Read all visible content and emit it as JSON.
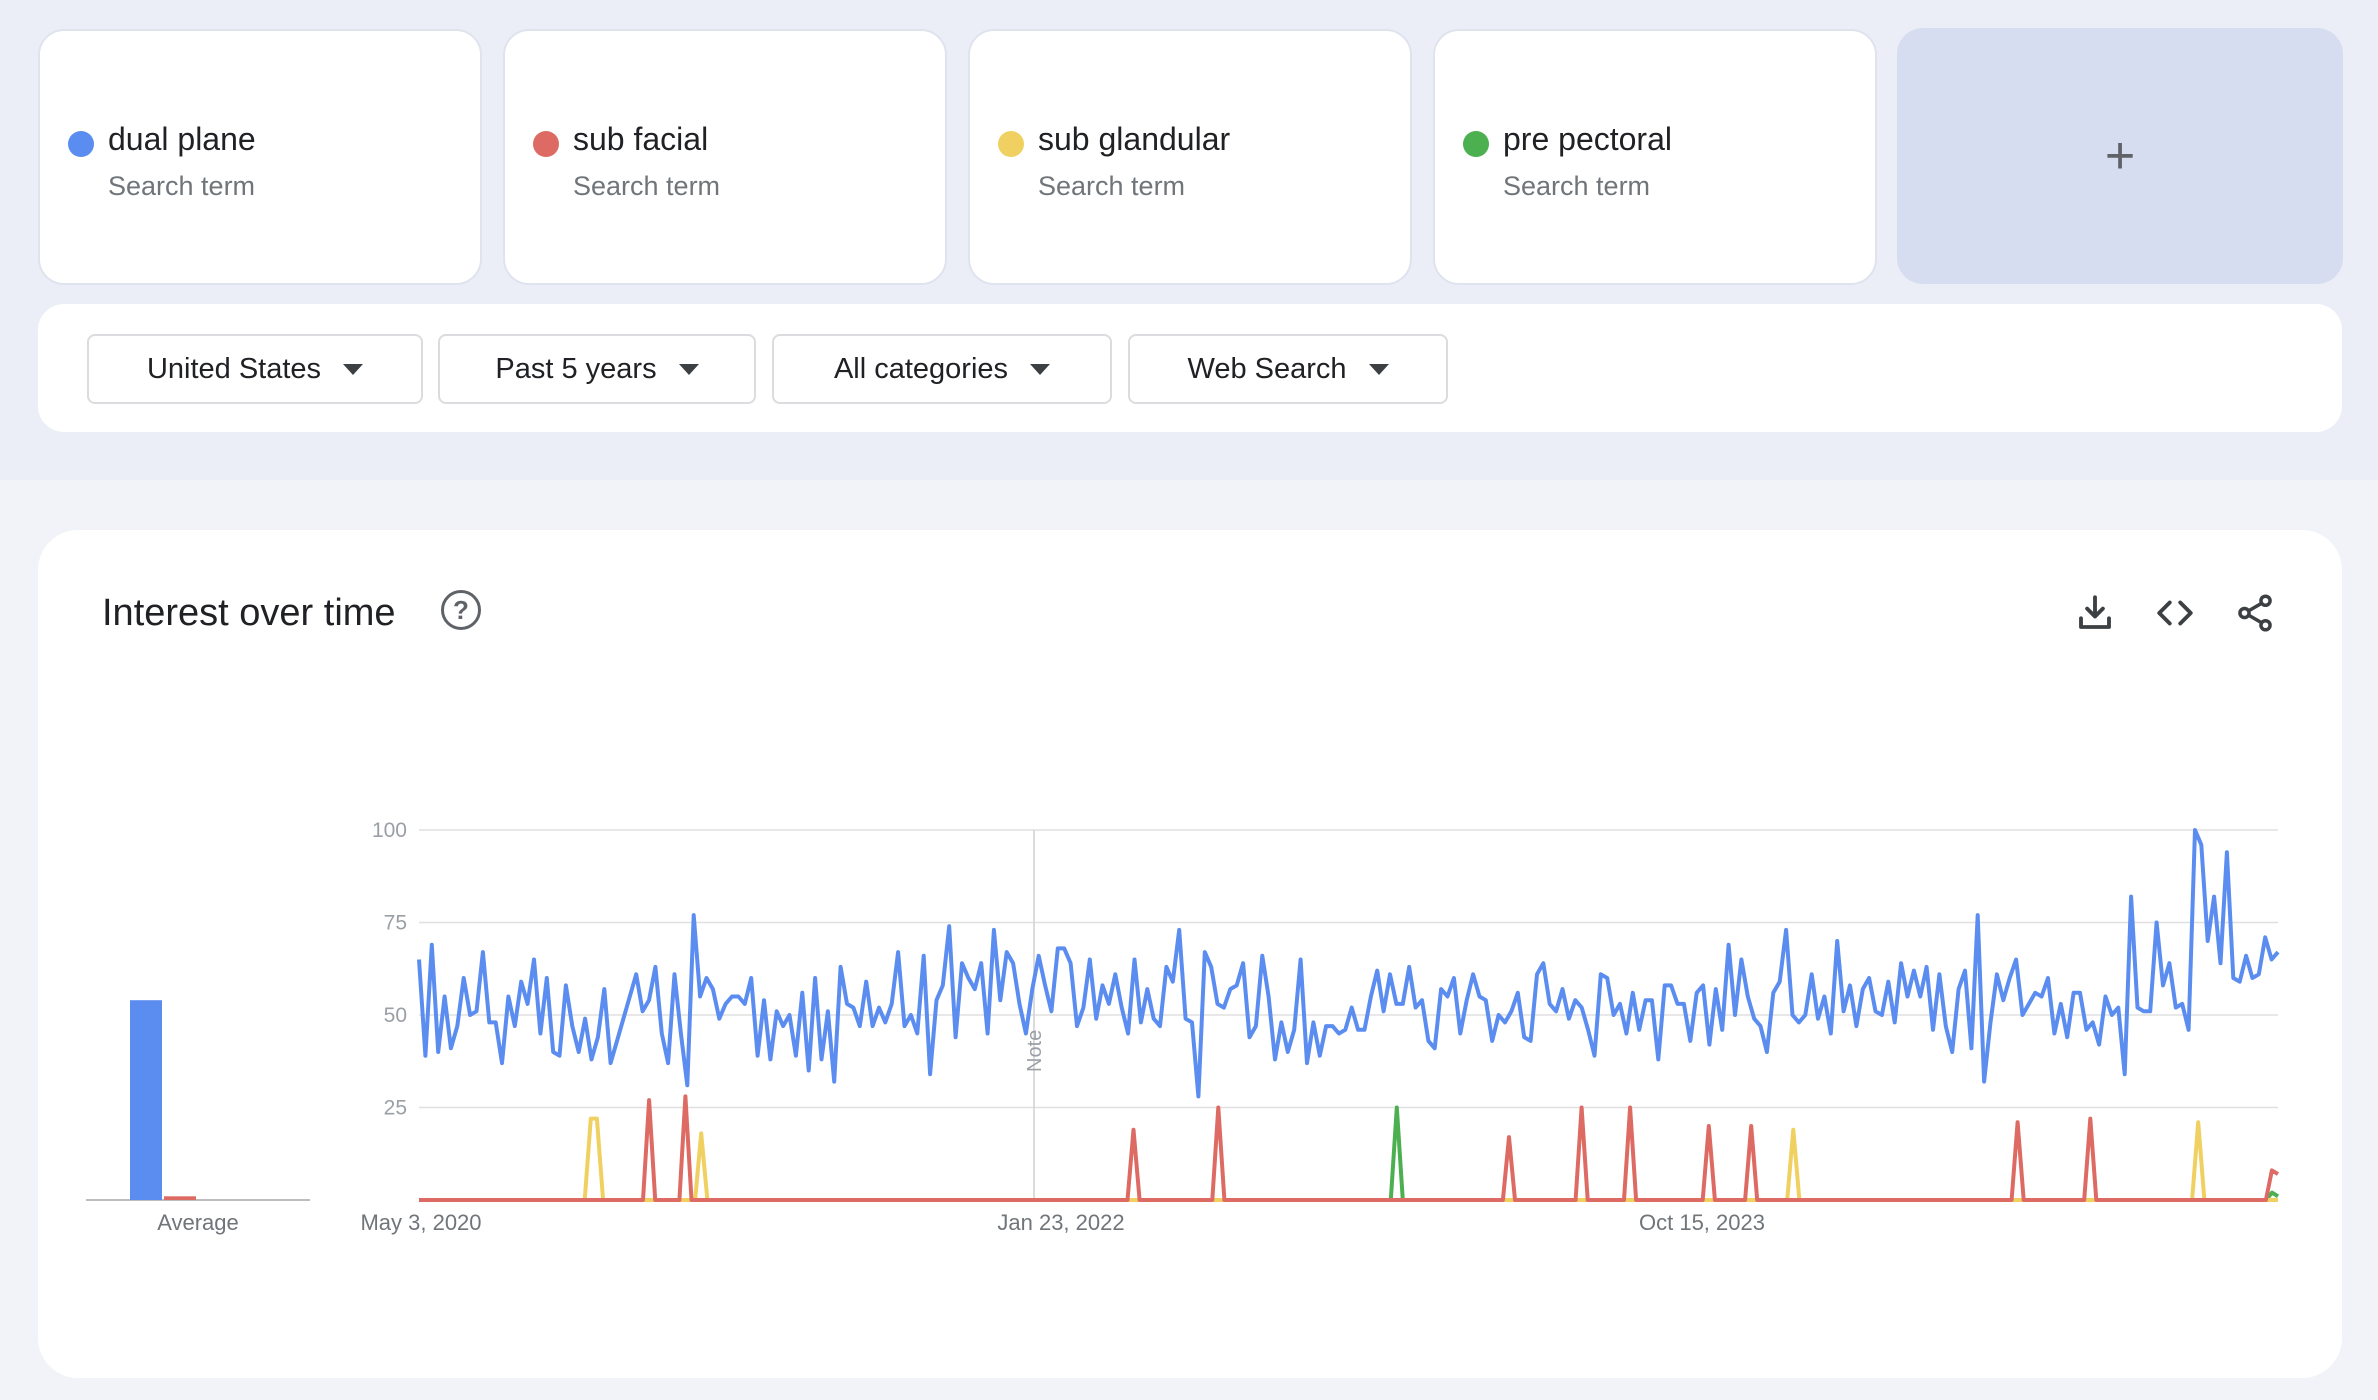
{
  "terms": [
    {
      "name": "dual plane",
      "subtitle": "Search term",
      "color": "#5b8df0"
    },
    {
      "name": "sub facial",
      "subtitle": "Search term",
      "color": "#dd6b63"
    },
    {
      "name": "sub glandular",
      "subtitle": "Search term",
      "color": "#f0d060"
    },
    {
      "name": "pre pectoral",
      "subtitle": "Search term",
      "color": "#4caf50"
    }
  ],
  "add_button": {
    "symbol": "+"
  },
  "filters": {
    "region": "United States",
    "time": "Past 5 years",
    "category": "All categories",
    "search_type": "Web Search"
  },
  "chart_card": {
    "title": "Interest over time",
    "help_symbol": "?",
    "icons": [
      "download-icon",
      "embed-code-icon",
      "share-icon"
    ]
  },
  "chart_data": {
    "type": "line",
    "ylim": [
      0,
      100
    ],
    "y_ticks": [
      "100",
      "75",
      "50",
      "25"
    ],
    "x_ticks": [
      "May 3, 2020",
      "Jan 23, 2022",
      "Oct 15, 2023"
    ],
    "note_label": "Note",
    "average": {
      "label": "Average",
      "values": [
        {
          "name": "dual plane",
          "value": 54
        },
        {
          "name": "sub facial",
          "value": 1
        },
        {
          "name": "sub glandular",
          "value": 0
        },
        {
          "name": "pre pectoral",
          "value": 0
        }
      ]
    },
    "series": [
      {
        "name": "dual plane",
        "color": "#5b8df0",
        "values": [
          65,
          39,
          69,
          40,
          55,
          41,
          47,
          60,
          50,
          51,
          67,
          48,
          48,
          37,
          55,
          47,
          59,
          53,
          65,
          45,
          60,
          40,
          39,
          58,
          47,
          40,
          49,
          38,
          44,
          57,
          37,
          43,
          49,
          55,
          61,
          51,
          54,
          63,
          45,
          37,
          61,
          45,
          31,
          77,
          55,
          60,
          57,
          49,
          53,
          55,
          55,
          53,
          60,
          39,
          54,
          38,
          51,
          47,
          50,
          39,
          56,
          35,
          60,
          38,
          51,
          32,
          63,
          53,
          52,
          47,
          59,
          47,
          52,
          48,
          53,
          67,
          47,
          50,
          45,
          66,
          34,
          54,
          58,
          74,
          44,
          64,
          60,
          57,
          64,
          45,
          73,
          54,
          67,
          64,
          53,
          45,
          57,
          66,
          58,
          51,
          68,
          68,
          64,
          47,
          52,
          65,
          49,
          58,
          53,
          61,
          52,
          45,
          65,
          48,
          57,
          49,
          47,
          63,
          59,
          73,
          49,
          48,
          28,
          67,
          63,
          53,
          52,
          57,
          58,
          64,
          44,
          47,
          66,
          55,
          38,
          48,
          40,
          46,
          65,
          37,
          48,
          39,
          47,
          47,
          45,
          46,
          52,
          46,
          46,
          55,
          62,
          51,
          61,
          53,
          53,
          63,
          52,
          54,
          43,
          41,
          57,
          55,
          60,
          45,
          54,
          61,
          55,
          54,
          43,
          50,
          48,
          51,
          56,
          44,
          43,
          61,
          64,
          53,
          51,
          57,
          49,
          54,
          52,
          46,
          39,
          61,
          60,
          50,
          53,
          45,
          56,
          46,
          54,
          54,
          38,
          58,
          58,
          53,
          53,
          43,
          56,
          58,
          42,
          57,
          46,
          69,
          50,
          65,
          55,
          49,
          47,
          40,
          56,
          59,
          73,
          50,
          48,
          50,
          61,
          49,
          55,
          45,
          70,
          51,
          58,
          47,
          57,
          60,
          51,
          50,
          59,
          48,
          64,
          55,
          62,
          55,
          63,
          46,
          61,
          47,
          40,
          57,
          62,
          41,
          77,
          32,
          48,
          61,
          54,
          60,
          65,
          50,
          53,
          56,
          55,
          60,
          45,
          53,
          44,
          56,
          56,
          46,
          48,
          42,
          55,
          50,
          52,
          34,
          82,
          52,
          51,
          51,
          75,
          58,
          64,
          52,
          53,
          46,
          100,
          96,
          70,
          82,
          64,
          94,
          60,
          59,
          66,
          60,
          61,
          71,
          65,
          67
        ]
      },
      {
        "name": "sub facial",
        "color": "#dd6b63",
        "values": [
          0,
          0,
          0,
          0,
          0,
          0,
          0,
          0,
          0,
          0,
          0,
          0,
          0,
          0,
          0,
          0,
          0,
          0,
          0,
          0,
          0,
          0,
          0,
          0,
          0,
          0,
          0,
          0,
          0,
          0,
          0,
          0,
          0,
          0,
          0,
          0,
          0,
          0,
          27,
          0,
          0,
          0,
          0,
          0,
          0,
          0,
          0,
          0,
          0,
          0,
          0,
          0,
          0,
          0,
          0,
          0,
          0,
          0,
          0,
          0,
          0,
          0,
          0,
          0,
          0,
          0,
          0,
          0,
          0,
          0,
          0,
          0,
          0,
          0,
          0,
          0,
          0,
          0,
          0,
          0,
          0,
          0,
          0,
          0,
          0,
          0,
          0,
          0,
          0,
          0,
          0,
          0,
          0,
          0,
          0,
          0,
          0,
          0,
          0,
          0,
          0,
          0,
          0,
          0,
          0,
          0,
          0,
          0,
          0,
          0,
          0,
          0,
          0,
          0,
          0,
          0,
          0,
          0,
          0,
          0,
          0,
          0,
          0,
          0,
          0,
          0,
          0,
          0,
          0,
          0,
          0,
          0,
          0,
          0,
          0,
          0,
          0,
          0,
          0,
          0,
          0,
          0,
          0,
          0,
          0,
          0,
          0,
          0,
          0,
          0,
          0,
          0,
          0,
          0,
          0,
          0,
          0,
          0,
          0,
          0,
          0,
          0,
          0,
          0,
          0,
          0,
          0,
          0,
          0,
          0,
          0,
          0,
          0,
          0,
          0,
          0,
          0,
          0,
          0,
          0,
          0,
          0,
          0,
          0,
          0,
          0,
          0,
          0,
          0,
          0,
          0,
          0,
          0,
          0,
          0,
          0,
          0,
          0,
          0,
          0,
          0,
          0,
          0,
          0,
          0,
          0,
          0,
          0,
          0,
          0,
          0,
          0,
          0,
          0,
          0,
          0,
          0,
          0,
          0,
          0,
          0,
          0,
          0,
          0,
          0,
          0,
          0,
          0,
          0,
          0,
          0,
          0,
          0,
          0,
          0,
          0,
          0,
          0,
          0,
          0,
          0,
          0,
          0,
          0,
          0,
          0,
          0,
          0,
          0,
          0,
          0,
          0,
          0,
          0,
          0,
          0,
          0,
          0,
          0,
          0,
          0,
          0,
          0,
          0,
          0,
          0,
          0,
          0,
          0,
          0,
          0,
          0,
          0,
          0,
          0,
          0,
          0,
          0,
          0,
          0,
          0,
          0,
          0,
          0,
          0,
          0,
          0,
          0,
          0,
          0,
          0,
          0,
          0,
          0,
          0,
          0,
          0,
          0,
          0,
          0,
          0,
          0,
          0,
          0,
          0,
          0,
          8,
          7
        ]
      },
      {
        "name": "sub glandular",
        "color": "#f0d060",
        "values": [
          0,
          0,
          0,
          0,
          0,
          0,
          0,
          0,
          0,
          0,
          0,
          0,
          0,
          0,
          0,
          0,
          0,
          0,
          0,
          0,
          0,
          0,
          0,
          0,
          0,
          0,
          0,
          0,
          22,
          0,
          0,
          0,
          0,
          0,
          0,
          0,
          0,
          0,
          0,
          0,
          0,
          0,
          0,
          0,
          0,
          0,
          0,
          0,
          0,
          0,
          0,
          0,
          0,
          0,
          0,
          0,
          0,
          0,
          0,
          0,
          0,
          0,
          0,
          0,
          0,
          0,
          0,
          0,
          0,
          0,
          0,
          0,
          0,
          0,
          0,
          0,
          0,
          0,
          0,
          0,
          0,
          0,
          0,
          0,
          0,
          0,
          0,
          0,
          0,
          0,
          0,
          0,
          0,
          0,
          0,
          0,
          0,
          0,
          0,
          0,
          0,
          0,
          0,
          0,
          0,
          0,
          0,
          0,
          0,
          0,
          0,
          0,
          0,
          0,
          0,
          0,
          0,
          0,
          0,
          0,
          0,
          0,
          0,
          0,
          0,
          0,
          0,
          0,
          0,
          0,
          0,
          0,
          0,
          0,
          0,
          0,
          0,
          0,
          0,
          0,
          0,
          0,
          0,
          0,
          0,
          0,
          0,
          0,
          0,
          0,
          0,
          0,
          0,
          0,
          0,
          0,
          0,
          0,
          0,
          0,
          0,
          0,
          0,
          0,
          0,
          0,
          0,
          0,
          0,
          0,
          0,
          0,
          0,
          0,
          0,
          0,
          0,
          0,
          0,
          0,
          0,
          0,
          0,
          0,
          0,
          0,
          0,
          0,
          0,
          0,
          0,
          0,
          0,
          0,
          0,
          0,
          0,
          0,
          0,
          0,
          0,
          0,
          0,
          0,
          0,
          0,
          0,
          0,
          0,
          0,
          0,
          0,
          0,
          0,
          0,
          0,
          0,
          0,
          0,
          0,
          0,
          0,
          0,
          0,
          0,
          0,
          0,
          0,
          0,
          0,
          0,
          0,
          0,
          0,
          0,
          0,
          0,
          0,
          0,
          0,
          0,
          0,
          0,
          0,
          0,
          0,
          0,
          0,
          0,
          0,
          0,
          0,
          0,
          0,
          0,
          0,
          0,
          0,
          0,
          0,
          0,
          0,
          0,
          0,
          0,
          0,
          0,
          0,
          0,
          0,
          0,
          0,
          0,
          0,
          0,
          0,
          0,
          0,
          0,
          0,
          0,
          0,
          0,
          0,
          0,
          0,
          0,
          0,
          0,
          0,
          0,
          0,
          0,
          0,
          0,
          0,
          0,
          0,
          0,
          0,
          0,
          0,
          0,
          0
        ]
      },
      {
        "name": "pre pectoral",
        "color": "#4caf50",
        "values": [
          0,
          0,
          0,
          0,
          0,
          0,
          0,
          0,
          0,
          0,
          0,
          0,
          0,
          0,
          0,
          0,
          0,
          0,
          0,
          0,
          0,
          0,
          0,
          0,
          0,
          0,
          0,
          0,
          0,
          0,
          0,
          0,
          0,
          0,
          0,
          0,
          0,
          0,
          0,
          0,
          0,
          0,
          0,
          0,
          0,
          0,
          0,
          0,
          0,
          0,
          0,
          0,
          0,
          0,
          0,
          0,
          0,
          0,
          0,
          0,
          0,
          0,
          0,
          0,
          0,
          0,
          0,
          0,
          0,
          0,
          0,
          0,
          0,
          0,
          0,
          0,
          0,
          0,
          0,
          0,
          0,
          0,
          0,
          0,
          0,
          0,
          0,
          0,
          0,
          0,
          0,
          0,
          0,
          0,
          0,
          0,
          0,
          0,
          0,
          0,
          0,
          0,
          0,
          0,
          0,
          0,
          0,
          0,
          0,
          0,
          0,
          0,
          0,
          0,
          0,
          0,
          0,
          0,
          0,
          0,
          0,
          0,
          0,
          0,
          0,
          0,
          0,
          0,
          0,
          0,
          0,
          0,
          0,
          0,
          0,
          0,
          0,
          0,
          0,
          0,
          0,
          0,
          0,
          0,
          0,
          0,
          0,
          0,
          0,
          0,
          0,
          0,
          0,
          0,
          0,
          0,
          0,
          0,
          0,
          0,
          0,
          0,
          0,
          0,
          0,
          0,
          0,
          0,
          0,
          0,
          0,
          0,
          0,
          0,
          0,
          0,
          0,
          0,
          0,
          0,
          0,
          0,
          0,
          0,
          0,
          0,
          0,
          0,
          0,
          0,
          0,
          0,
          0,
          0,
          0,
          0,
          0,
          0,
          0,
          0,
          0,
          0,
          0,
          0,
          0,
          0,
          0,
          0,
          0,
          0,
          0,
          0,
          0,
          0,
          0,
          0,
          0,
          0,
          0,
          0,
          0,
          0,
          0,
          0,
          0,
          0,
          0,
          0,
          0,
          0,
          0,
          0,
          0,
          0,
          0,
          0,
          0,
          0,
          0,
          0,
          0,
          0,
          0,
          0,
          0,
          0,
          0,
          0,
          0,
          0,
          0,
          0,
          0,
          0,
          0,
          0,
          0,
          0,
          0,
          0,
          0,
          0,
          0,
          0,
          0,
          0,
          0,
          0,
          0,
          0,
          0,
          0,
          0,
          0,
          0,
          0,
          0,
          0,
          0,
          0,
          0,
          0,
          0,
          0,
          0,
          0,
          0,
          0,
          0,
          0,
          0,
          0,
          0,
          0,
          0,
          0,
          0,
          0,
          0,
          0,
          0,
          0,
          0,
          0,
          0,
          0,
          0,
          2,
          1
        ]
      }
    ],
    "spikes": {
      "sub facial": [
        [
          0.143,
          28
        ],
        [
          0.384,
          19
        ],
        [
          0.43,
          25
        ],
        [
          0.587,
          17
        ],
        [
          0.626,
          25
        ],
        [
          0.653,
          25
        ],
        [
          0.694,
          20
        ],
        [
          0.717,
          20
        ],
        [
          0.861,
          21
        ],
        [
          0.9,
          22
        ]
      ],
      "sub glandular": [
        [
          0.096,
          22
        ],
        [
          0.152,
          18
        ],
        [
          0.739,
          19
        ],
        [
          0.958,
          21
        ]
      ],
      "pre pectoral": [
        [
          0.525,
          25
        ]
      ]
    }
  }
}
